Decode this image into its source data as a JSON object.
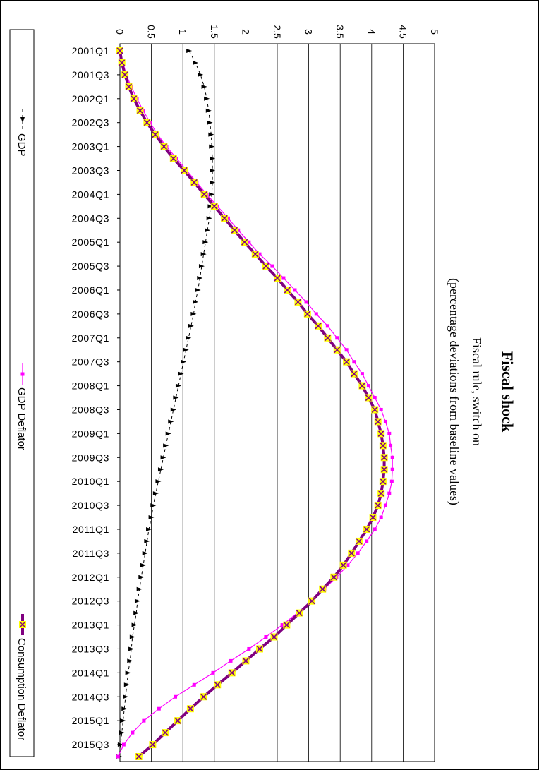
{
  "chart_data": {
    "type": "line",
    "orientation": "rotated-90-clockwise",
    "title": "Fiscal shock",
    "subtitle": "Fiscal rule, switch on",
    "subtitle2": "(percentage deviations from baseline values)",
    "ylim": [
      0,
      5
    ],
    "yticks": [
      "0",
      "0.5",
      "1",
      "1.5",
      "2",
      "2.5",
      "3",
      "3.5",
      "4",
      "4.5",
      "5"
    ],
    "grid": true,
    "legend_position": "bottom",
    "x_tick_labels": [
      "2001Q1",
      "2001Q3",
      "2002Q1",
      "2002Q3",
      "2003Q1",
      "2003Q3",
      "2004Q1",
      "2004Q3",
      "2005Q1",
      "2005Q3",
      "2006Q1",
      "2006Q3",
      "2007Q1",
      "2007Q3",
      "2008Q1",
      "2008Q3",
      "2009Q1",
      "2009Q3",
      "2010Q1",
      "2010Q3",
      "2011Q1",
      "2011Q3",
      "2012Q1",
      "2012Q3",
      "2013Q1",
      "2013Q3",
      "2014Q1",
      "2014Q3",
      "2015Q1",
      "2015Q3"
    ],
    "x": [
      "2001Q1",
      "2001Q2",
      "2001Q3",
      "2001Q4",
      "2002Q1",
      "2002Q2",
      "2002Q3",
      "2002Q4",
      "2003Q1",
      "2003Q2",
      "2003Q3",
      "2003Q4",
      "2004Q1",
      "2004Q2",
      "2004Q3",
      "2004Q4",
      "2005Q1",
      "2005Q2",
      "2005Q3",
      "2005Q4",
      "2006Q1",
      "2006Q2",
      "2006Q3",
      "2006Q4",
      "2007Q1",
      "2007Q2",
      "2007Q3",
      "2007Q4",
      "2008Q1",
      "2008Q2",
      "2008Q3",
      "2008Q4",
      "2009Q1",
      "2009Q2",
      "2009Q3",
      "2009Q4",
      "2010Q1",
      "2010Q2",
      "2010Q3",
      "2010Q4",
      "2011Q1",
      "2011Q2",
      "2011Q3",
      "2011Q4",
      "2012Q1",
      "2012Q2",
      "2012Q3",
      "2012Q4",
      "2013Q1",
      "2013Q2",
      "2013Q3",
      "2013Q4",
      "2014Q1",
      "2014Q2",
      "2014Q3",
      "2014Q4",
      "2015Q1",
      "2015Q2",
      "2015Q3",
      "2015Q4"
    ],
    "series": [
      {
        "name": "GDP",
        "color": "#000000",
        "marker": "triangle",
        "line_style": "dashed",
        "values": [
          1.1,
          1.2,
          1.28,
          1.34,
          1.38,
          1.41,
          1.43,
          1.45,
          1.46,
          1.47,
          1.47,
          1.47,
          1.46,
          1.44,
          1.42,
          1.39,
          1.36,
          1.33,
          1.3,
          1.27,
          1.24,
          1.2,
          1.17,
          1.13,
          1.09,
          1.05,
          1.01,
          0.97,
          0.93,
          0.89,
          0.85,
          0.81,
          0.77,
          0.73,
          0.69,
          0.65,
          0.61,
          0.57,
          0.53,
          0.5,
          0.46,
          0.43,
          0.4,
          0.37,
          0.34,
          0.31,
          0.28,
          0.26,
          0.23,
          0.2,
          0.18,
          0.16,
          0.13,
          0.11,
          0.09,
          0.07,
          0.05,
          0.03,
          0.01,
          -0.01
        ]
      },
      {
        "name": "GDP Deflator",
        "color": "#ff00ff",
        "marker": "square",
        "line_style": "solid",
        "values": [
          0.0,
          0.05,
          0.1,
          0.18,
          0.27,
          0.37,
          0.48,
          0.6,
          0.74,
          0.9,
          1.06,
          1.22,
          1.38,
          1.55,
          1.72,
          1.88,
          2.05,
          2.22,
          2.42,
          2.6,
          2.78,
          2.96,
          3.12,
          3.3,
          3.45,
          3.6,
          3.72,
          3.85,
          3.95,
          4.05,
          4.15,
          4.22,
          4.28,
          4.3,
          4.33,
          4.33,
          4.32,
          4.28,
          4.22,
          4.15,
          4.05,
          3.92,
          3.78,
          3.62,
          3.44,
          3.25,
          3.05,
          2.82,
          2.58,
          2.32,
          2.05,
          1.76,
          1.48,
          1.18,
          0.88,
          0.62,
          0.38,
          0.2,
          0.06,
          -0.03
        ]
      },
      {
        "name": "Consumption Deflator",
        "color": "#800080",
        "marker": "x-on-yellow-square",
        "line_style": "thick-solid",
        "values": [
          0.0,
          0.03,
          0.08,
          0.14,
          0.22,
          0.32,
          0.43,
          0.56,
          0.7,
          0.85,
          1.02,
          1.18,
          1.34,
          1.5,
          1.66,
          1.82,
          1.98,
          2.15,
          2.32,
          2.5,
          2.66,
          2.83,
          2.98,
          3.15,
          3.3,
          3.45,
          3.6,
          3.72,
          3.85,
          3.95,
          4.05,
          4.1,
          4.15,
          4.18,
          4.2,
          4.2,
          4.18,
          4.15,
          4.1,
          4.02,
          3.92,
          3.8,
          3.68,
          3.55,
          3.4,
          3.22,
          3.05,
          2.85,
          2.65,
          2.45,
          2.22,
          2.0,
          1.78,
          1.55,
          1.33,
          1.12,
          0.92,
          0.72,
          0.52,
          0.3
        ]
      }
    ]
  }
}
